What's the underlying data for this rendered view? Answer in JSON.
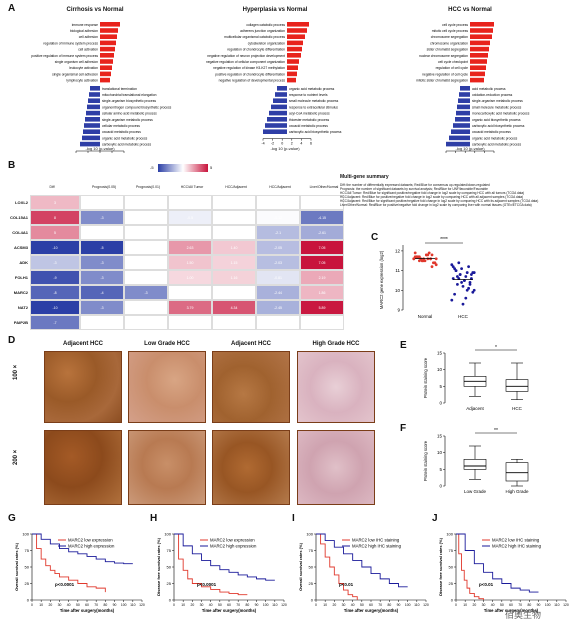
{
  "panels": {
    "A": "A",
    "B": "B",
    "C": "C",
    "D": "D",
    "E": "E",
    "F": "F",
    "G": "G",
    "H": "H",
    "I": "I",
    "J": "J"
  },
  "panelA": {
    "titles": [
      "Cirrhosis vs Normal",
      "Hyperplasia vs Normal",
      "HCC vs Normal"
    ],
    "xlabel": "-log 10 (p-value)",
    "sub1": {
      "up": [
        "immune response",
        "biological adhesion",
        "cell adhesion",
        "regulation of immune system process",
        "cell activation",
        "positive regulation of immune system process",
        "single organism cell adhesion",
        "leukocyte activation",
        "single organismal cell adhesion",
        "lymphocyte activation"
      ],
      "down": [
        "translational termination",
        "mitochondrial translational elongation",
        "single-organism biosynthetic process",
        "organonitrogen compound biosynthetic process",
        "cellular amino acid metabolic process",
        "single-organism metabolic process",
        "cellular metabolic process",
        "oxoacid metabolic process",
        "organic acid metabolic process",
        "carboxylic acid metabolic process"
      ],
      "ticks": [
        "-10",
        "-5",
        "0",
        "5",
        "10"
      ]
    },
    "sub2": {
      "up": [
        "collagen catabolic process",
        "adherens junction organization",
        "multicellular organismal catabolic process",
        "cytoskeleton organization",
        "regulation of chondrocyte differentiation",
        "negative regulation of neuron projection development",
        "negative regulation of cellular component organization",
        "negative regulation of kinase H3-K27 methylation",
        "positive regulation of chondrocyte differentiation",
        "negative regulation of developmental process"
      ],
      "down": [
        "organic acid metabolic process",
        "response to nutrient levels",
        "small molecule metabolic process",
        "response to extracellular stimulus",
        "acyl-CoA metabolic process",
        "thioester metabolic process",
        "oxoacid metabolic process",
        "carboxylic acid biosynthetic process"
      ],
      "ticks": [
        "-4",
        "-2",
        "0",
        "2",
        "4",
        "6"
      ]
    },
    "sub3": {
      "up": [
        "cell cycle process",
        "mitotic cell cycle process",
        "chromosome segregation",
        "chromosome organization",
        "sister chromatid segregation",
        "nuclear chromosome segregation",
        "cell cycle checkpoint",
        "regulation of cell cycle",
        "negative regulation of cell cycle",
        "mitotic sister chromatid segregation"
      ],
      "down": [
        "acid metabolic process",
        "oxidation-reduction process",
        "single-organism metabolic process",
        "small molecule metabolic process",
        "monocarboxylic acid metabolic process",
        "organic acid biosynthetic process",
        "carboxylic acid biosynthetic process",
        "oxoacid metabolic process",
        "organic acid metabolic process",
        "carboxylic acid metabolic process"
      ],
      "ticks": [
        "-40",
        "-20",
        "0",
        "20",
        "40",
        "60"
      ]
    }
  },
  "panelB": {
    "legend_min": "-5",
    "legend_max": "5",
    "columns": [
      "Diff",
      "Prognosis(0.05)",
      "Prognosis(0.01)",
      "HCC/All Tumor",
      "HCC/Adjacent",
      "HCC/Adjacent",
      "Liver/Other/Normal"
    ],
    "rows": [
      "LOXL2",
      "COL15A1",
      "COL4A1",
      "ACSM3",
      "ADK",
      "FOLH1",
      "MARC2",
      "NAT2",
      "PAIP2B"
    ],
    "cells": [
      [
        "3",
        "",
        "",
        "",
        "",
        "",
        ""
      ],
      [
        "8",
        "-3",
        "",
        "-0.5",
        "",
        "-0.12",
        "-4.15"
      ],
      [
        "5",
        "",
        "",
        "",
        "",
        "-2.1",
        "-2.61"
      ],
      [
        "-10",
        "-5",
        "",
        "2.63",
        "1.40",
        "-2.05",
        "7.05"
      ],
      [
        "-3",
        "-3",
        "",
        "1.50",
        "1.15",
        "-2.03",
        "7.05"
      ],
      [
        "-9",
        "-3",
        "",
        "1.00",
        "1.16",
        "-0.81",
        "2.19"
      ],
      [
        "-8",
        "-4",
        "-3",
        "",
        "",
        "-2.44",
        "1.86"
      ],
      [
        "-10",
        "-3",
        "",
        "3.79",
        "4.34",
        "-2.45",
        "5.89"
      ],
      [
        "-7",
        "",
        "",
        "",
        "",
        "",
        ""
      ]
    ],
    "summary_title": "Multi-gene summary",
    "summary_lines": [
      "Diff: the number of differentially expressed datasets; Red/Blue for consensus up-regulated/down-regulated",
      "Prognosis: the number of significant datasets by survival analysis; Red/Blue for UNF/favorable/Favorable",
      "HCC/All Tumor: Red/Blue for significant positive/negative fold change in log2 scale by comparing HCC with all tumors (TCGA data)",
      "HCC/Adjacent: Red/Blue for positive/negative fold change in log2 scale by comparing HCC with all adjacent samples (TCGA data)",
      "HCC/Adjacent: Red/Blue for significant positive/negative fold change in log2 scale by comparing HCC with its adjacent samples (TCGA data)",
      "Liver/Other/Normal: Red/Blue for positive/negative fold change in log2 scale by comparing liver with normal tissues (GTEx/ETCGA data)"
    ]
  },
  "chart_data": [
    {
      "type": "scatter",
      "panel": "C",
      "ylabel": "MARC2 gene expression (log2)",
      "categories": [
        "Normal",
        "HCC"
      ],
      "ylim": [
        9,
        12.3
      ],
      "yticks": [
        "9",
        "10",
        "11",
        "12"
      ],
      "significance": "****",
      "series": [
        {
          "values": [
            11.6,
            11.7,
            11.5,
            11.8,
            11.6,
            11.4,
            11.9,
            11.7,
            11.5,
            11.6,
            11.8,
            11.3,
            11.7,
            11.6,
            11.5,
            11.9,
            11.4,
            11.6,
            11.7,
            11.5,
            11.8,
            11.6,
            11.4,
            11.7,
            11.5,
            11.6,
            11.8,
            11.2,
            11.6,
            11.7
          ]
        },
        {
          "values": [
            11.3,
            11.0,
            10.8,
            10.5,
            11.2,
            10.9,
            10.6,
            10.3,
            11.1,
            10.7,
            10.4,
            10.0,
            9.8,
            11.4,
            10.2,
            10.9,
            10.6,
            9.5,
            11.0,
            10.8,
            10.5,
            10.1,
            9.9,
            11.2,
            10.7,
            10.4,
            9.6,
            10.3,
            10.9,
            11.1,
            10.6,
            9.3,
            10.0,
            10.8
          ]
        }
      ]
    },
    {
      "type": "box",
      "panel": "E",
      "ylabel": "Protein staining score",
      "categories": [
        "Adjacent",
        "HCC"
      ],
      "ylim": [
        0,
        15
      ],
      "yticks": [
        "0",
        "5",
        "10",
        "15"
      ],
      "significance": "*",
      "boxes": [
        {
          "min": 2,
          "q1": 5,
          "median": 6.5,
          "q3": 8,
          "max": 12
        },
        {
          "min": 1,
          "q1": 3.5,
          "median": 5,
          "q3": 7,
          "max": 12
        }
      ]
    },
    {
      "type": "box",
      "panel": "F",
      "ylabel": "Protein staining score",
      "categories": [
        "Low Grade",
        "High Grade"
      ],
      "ylim": [
        0,
        15
      ],
      "yticks": [
        "0",
        "5",
        "10",
        "15"
      ],
      "significance": "**",
      "boxes": [
        {
          "min": 2,
          "q1": 5,
          "median": 6,
          "q3": 8,
          "max": 12
        },
        {
          "min": 0,
          "q1": 1.5,
          "median": 4,
          "q3": 7,
          "max": 8
        }
      ]
    },
    {
      "type": "line",
      "panel": "G",
      "ylabel": "Overall survival rates (%)",
      "xlabel": "Time after surgery(months)",
      "xticks": [
        "0",
        "10",
        "20",
        "30",
        "40",
        "50",
        "60",
        "70",
        "80",
        "90",
        "100",
        "110",
        "120"
      ],
      "yticks": [
        "0",
        "25",
        "50",
        "75",
        "100"
      ],
      "pvalue": "p<0.0001",
      "series": [
        {
          "name": "MARC2 low expression",
          "color": "#e0382c",
          "x": [
            0,
            5,
            10,
            15,
            20,
            25,
            30,
            40,
            50,
            60,
            70,
            80
          ],
          "y": [
            100,
            78,
            62,
            52,
            45,
            40,
            35,
            30,
            25,
            20,
            18,
            12
          ]
        },
        {
          "name": "MARC2 high expression",
          "color": "#1a1a9a",
          "x": [
            0,
            10,
            20,
            30,
            40,
            50,
            60,
            70,
            80,
            90,
            100,
            110
          ],
          "y": [
            100,
            92,
            85,
            78,
            73,
            70,
            66,
            62,
            58,
            56,
            55,
            55
          ]
        }
      ]
    },
    {
      "type": "line",
      "panel": "H",
      "ylabel": "Disease free survival rates (%)",
      "xlabel": "Time after surgery(months)",
      "xticks": [
        "0",
        "10",
        "20",
        "30",
        "40",
        "50",
        "60",
        "70",
        "80",
        "90",
        "100",
        "110",
        "120"
      ],
      "yticks": [
        "0",
        "25",
        "50",
        "75",
        "100"
      ],
      "pvalue": "p<0.0001",
      "series": [
        {
          "name": "MARC2 low expression",
          "color": "#e0382c",
          "x": [
            0,
            5,
            10,
            15,
            20,
            30,
            40,
            50,
            60,
            70,
            80
          ],
          "y": [
            100,
            62,
            45,
            32,
            25,
            20,
            16,
            12,
            10,
            8,
            8
          ]
        },
        {
          "name": "MARC2 high expression",
          "color": "#1a1a9a",
          "x": [
            0,
            10,
            20,
            30,
            40,
            50,
            60,
            70,
            80,
            90,
            100,
            110
          ],
          "y": [
            100,
            82,
            70,
            60,
            52,
            46,
            42,
            38,
            35,
            32,
            30,
            30
          ]
        }
      ]
    },
    {
      "type": "line",
      "panel": "I",
      "ylabel": "Overall survival rates (%)",
      "xlabel": "Time after surgery(months)",
      "xticks": [
        "0",
        "10",
        "20",
        "30",
        "40",
        "50",
        "60",
        "70",
        "80",
        "90",
        "100",
        "110",
        "120"
      ],
      "yticks": [
        "0",
        "25",
        "50",
        "75",
        "100"
      ],
      "pvalue": "p<0.01",
      "series": [
        {
          "name": "MARC2 low IHC staining",
          "color": "#e0382c",
          "x": [
            0,
            5,
            10,
            15,
            20,
            25,
            30,
            35,
            40,
            45
          ],
          "y": [
            100,
            85,
            65,
            50,
            38,
            25,
            15,
            8,
            5,
            0
          ]
        },
        {
          "name": "MARC2 high IHC staining",
          "color": "#1a1a9a",
          "x": [
            0,
            10,
            20,
            30,
            40,
            50,
            60,
            70,
            80,
            90,
            100
          ],
          "y": [
            100,
            90,
            80,
            70,
            60,
            50,
            40,
            32,
            25,
            20,
            20
          ]
        }
      ]
    },
    {
      "type": "line",
      "panel": "J",
      "ylabel": "Disease free survival rates (%)",
      "xlabel": "Time after surgery(months)",
      "xticks": [
        "0",
        "10",
        "20",
        "30",
        "40",
        "50",
        "60",
        "70",
        "80",
        "90",
        "100",
        "110",
        "120"
      ],
      "yticks": [
        "0",
        "25",
        "50",
        "75",
        "100"
      ],
      "pvalue": "p<0.01",
      "series": [
        {
          "name": "MARC2 low IHC staining",
          "color": "#e0382c",
          "x": [
            0,
            3,
            6,
            9,
            12,
            15,
            20,
            25,
            30
          ],
          "y": [
            100,
            70,
            45,
            30,
            18,
            10,
            5,
            2,
            0
          ]
        },
        {
          "name": "MARC2 high IHC staining",
          "color": "#1a1a9a",
          "x": [
            0,
            10,
            20,
            30,
            40,
            50,
            60,
            70,
            80,
            90
          ],
          "y": [
            100,
            75,
            55,
            42,
            32,
            25,
            18,
            15,
            12,
            12
          ]
        }
      ]
    }
  ],
  "panelD": {
    "titles": [
      "Adjacent HCC",
      "Low Grade HCC",
      "Adjacent HCC",
      "High Grade HCC"
    ],
    "row_labels": [
      "100 ×",
      "200 ×"
    ]
  },
  "watermark": "佰奥生物",
  "colors": {
    "red": "#e0382c",
    "blue": "#1a1a9a",
    "bar_up": "#e8231c",
    "bar_down": "#2e3ea6"
  }
}
